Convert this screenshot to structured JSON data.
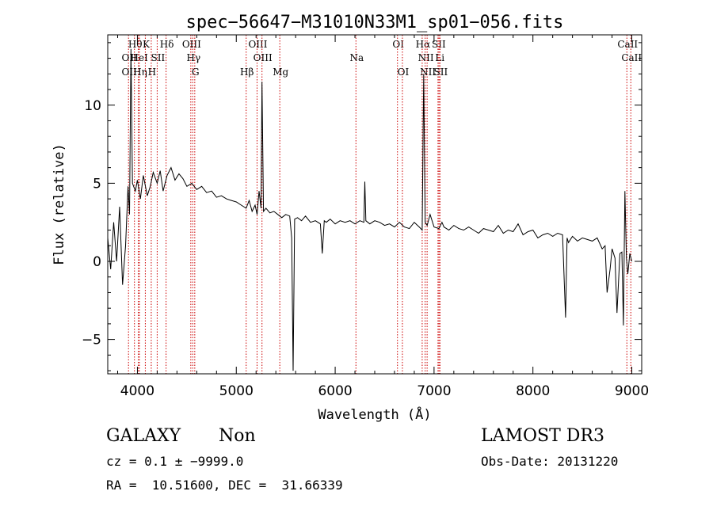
{
  "chart_data": {
    "type": "line",
    "title": "spec−56647−M31010N33M1_sp01−056.fits",
    "xlabel": "Wavelength (Å)",
    "ylabel": "Flux (relative)",
    "xlim": [
      3700,
      9100
    ],
    "ylim": [
      -7.2,
      14.5
    ],
    "xticks": [
      4000,
      5000,
      6000,
      7000,
      8000,
      9000
    ],
    "yticks": [
      -5,
      0,
      5,
      10
    ],
    "series": [
      {
        "name": "flux",
        "x": [
          3700,
          3730,
          3760,
          3790,
          3820,
          3850,
          3880,
          3905,
          3920,
          3935,
          3950,
          3980,
          4000,
          4030,
          4060,
          4100,
          4130,
          4160,
          4200,
          4230,
          4260,
          4300,
          4340,
          4380,
          4420,
          4460,
          4500,
          4550,
          4600,
          4650,
          4700,
          4750,
          4800,
          4850,
          4900,
          4950,
          5000,
          5050,
          5100,
          5130,
          5160,
          5190,
          5210,
          5230,
          5250,
          5260,
          5275,
          5300,
          5340,
          5380,
          5420,
          5460,
          5500,
          5540,
          5560,
          5575,
          5590,
          5620,
          5660,
          5700,
          5750,
          5800,
          5850,
          5870,
          5890,
          5910,
          5950,
          6000,
          6050,
          6100,
          6150,
          6200,
          6250,
          6290,
          6300,
          6310,
          6350,
          6400,
          6450,
          6500,
          6550,
          6600,
          6650,
          6700,
          6750,
          6800,
          6850,
          6880,
          6895,
          6910,
          6930,
          6960,
          7000,
          7050,
          7080,
          7100,
          7150,
          7200,
          7250,
          7300,
          7350,
          7400,
          7450,
          7500,
          7550,
          7600,
          7650,
          7700,
          7750,
          7800,
          7850,
          7900,
          7950,
          8000,
          8050,
          8100,
          8150,
          8200,
          8250,
          8300,
          8330,
          8345,
          8360,
          8400,
          8450,
          8500,
          8550,
          8600,
          8650,
          8700,
          8730,
          8750,
          8780,
          8800,
          8830,
          8850,
          8880,
          8900,
          8915,
          8930,
          8945,
          8960,
          8980,
          9000
        ],
        "y": [
          1.5,
          -0.5,
          2.5,
          0.0,
          3.5,
          -1.5,
          1.0,
          4.8,
          3.0,
          13.6,
          5.0,
          4.5,
          5.2,
          4.0,
          5.5,
          4.2,
          4.8,
          5.7,
          5.0,
          5.8,
          4.5,
          5.5,
          6.0,
          5.2,
          5.6,
          5.3,
          4.8,
          5.0,
          4.6,
          4.8,
          4.4,
          4.5,
          4.1,
          4.2,
          4.0,
          3.9,
          3.8,
          3.6,
          3.4,
          3.9,
          3.2,
          3.6,
          3.0,
          4.5,
          3.4,
          11.5,
          3.2,
          3.4,
          3.1,
          3.2,
          3.0,
          2.8,
          3.0,
          2.9,
          1.5,
          -7.0,
          2.7,
          2.8,
          2.6,
          2.9,
          2.5,
          2.6,
          2.4,
          0.5,
          2.6,
          2.5,
          2.7,
          2.4,
          2.6,
          2.5,
          2.6,
          2.4,
          2.6,
          2.5,
          5.1,
          2.6,
          2.4,
          2.6,
          2.5,
          2.3,
          2.4,
          2.2,
          2.5,
          2.2,
          2.1,
          2.5,
          2.2,
          2.0,
          12.0,
          2.5,
          2.3,
          3.0,
          2.2,
          2.1,
          2.5,
          2.2,
          2.0,
          2.3,
          2.1,
          2.0,
          2.2,
          2.0,
          1.8,
          2.1,
          2.0,
          1.9,
          2.3,
          1.8,
          2.0,
          1.9,
          2.4,
          1.7,
          1.9,
          2.0,
          1.5,
          1.7,
          1.8,
          1.6,
          1.8,
          1.7,
          -3.6,
          1.5,
          1.2,
          1.6,
          1.3,
          1.5,
          1.4,
          1.3,
          1.5,
          0.8,
          1.0,
          -2.0,
          -0.5,
          0.8,
          0.2,
          -3.3,
          0.5,
          0.6,
          -4.1,
          4.5,
          0.2,
          -0.8,
          0.5,
          0.0
        ],
        "color": "#000000"
      }
    ],
    "line_markers": [
      {
        "x": 3910,
        "labels": [
          "OII",
          "OII"
        ],
        "rows": [
          1,
          2
        ]
      },
      {
        "x": 3970,
        "labels": [
          "Hθ"
        ],
        "rows": [
          0
        ]
      },
      {
        "x": 4010,
        "labels": [
          "HeI"
        ],
        "rows": [
          1
        ]
      },
      {
        "x": 4020,
        "labels": [
          "Hη"
        ],
        "rows": [
          2
        ]
      },
      {
        "x": 4080,
        "labels": [
          "K"
        ],
        "rows": [
          0
        ]
      },
      {
        "x": 4140,
        "labels": [
          "H"
        ],
        "rows": [
          2
        ]
      },
      {
        "x": 4200,
        "labels": [
          "SII"
        ],
        "rows": [
          1
        ]
      },
      {
        "x": 4290,
        "labels": [
          "Hδ"
        ],
        "rows": [
          0
        ]
      },
      {
        "x": 4540,
        "labels": [
          "OIII"
        ],
        "rows": [
          0
        ]
      },
      {
        "x": 4560,
        "labels": [
          "Hγ"
        ],
        "rows": [
          1
        ]
      },
      {
        "x": 4580,
        "labels": [
          "G"
        ],
        "rows": [
          2
        ]
      },
      {
        "x": 5100,
        "labels": [
          "Hβ"
        ],
        "rows": [
          2
        ]
      },
      {
        "x": 5210,
        "labels": [
          "OIII"
        ],
        "rows": [
          0
        ]
      },
      {
        "x": 5260,
        "labels": [
          "OIII"
        ],
        "rows": [
          1
        ]
      },
      {
        "x": 5440,
        "labels": [
          "Mg"
        ],
        "rows": [
          2
        ]
      },
      {
        "x": 6210,
        "labels": [
          "Na"
        ],
        "rows": [
          1
        ]
      },
      {
        "x": 6630,
        "labels": [
          "OI"
        ],
        "rows": [
          0
        ]
      },
      {
        "x": 6680,
        "labels": [
          "OI"
        ],
        "rows": [
          2
        ]
      },
      {
        "x": 6880,
        "labels": [
          "Hα"
        ],
        "rows": [
          0
        ]
      },
      {
        "x": 6910,
        "labels": [
          "NII"
        ],
        "rows": [
          1
        ]
      },
      {
        "x": 6930,
        "labels": [
          "NII"
        ],
        "rows": [
          2
        ]
      },
      {
        "x": 7040,
        "labels": [
          "SII"
        ],
        "rows": [
          0
        ]
      },
      {
        "x": 7050,
        "labels": [
          "Li"
        ],
        "rows": [
          1
        ]
      },
      {
        "x": 7060,
        "labels": [
          "SII"
        ],
        "rows": [
          2
        ]
      },
      {
        "x": 8950,
        "labels": [
          "CaII"
        ],
        "rows": [
          0
        ]
      },
      {
        "x": 8990,
        "labels": [
          "CaII"
        ],
        "rows": [
          1
        ]
      }
    ],
    "marker_color": "#cc0000",
    "grid": false
  },
  "info": {
    "object_class": "GALAXY",
    "subclass": "Non",
    "survey": "LAMOST DR3",
    "redshift_line": "cz = 0.1 ± −9999.0",
    "obs_date": "Obs-Date: 20131220",
    "coords": "RA =  10.51600, DEC =  31.66339"
  }
}
